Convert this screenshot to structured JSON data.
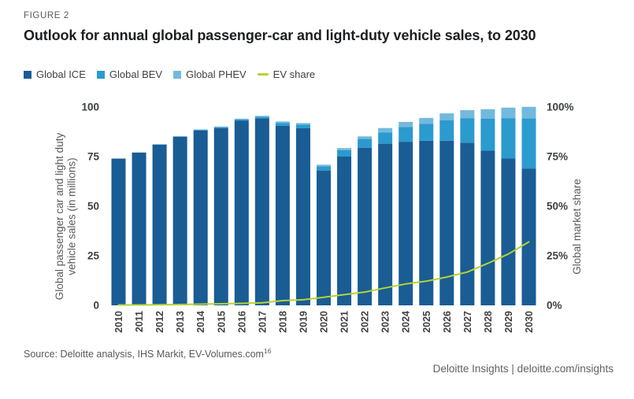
{
  "figure_label": "FIGURE 2",
  "title": "Outlook for annual global passenger-car and light-duty vehicle sales, to 2030",
  "legend": [
    "Global ICE",
    "Global BEV",
    "Global PHEV",
    "EV share"
  ],
  "chart_data": {
    "type": "bar",
    "subtype": "stacked-bars-with-line-overlay",
    "categories": [
      "2010",
      "2011",
      "2012",
      "2013",
      "2014",
      "2015",
      "2016",
      "2017",
      "2018",
      "2019",
      "2020",
      "2021",
      "2022",
      "2023",
      "2024",
      "2025",
      "2026",
      "2027",
      "2028",
      "2029",
      "2030"
    ],
    "series": [
      {
        "name": "Global ICE",
        "key": "ice",
        "color": "#1a5c94",
        "values": [
          74,
          77,
          81,
          85,
          88.2,
          89.4,
          93.2,
          94.3,
          90.5,
          89.3,
          68,
          75,
          79.5,
          81.5,
          82.5,
          83,
          83,
          82,
          78,
          74,
          69
        ]
      },
      {
        "name": "Global BEV",
        "key": "bev",
        "color": "#2b9ace",
        "values": [
          0.05,
          0.1,
          0.15,
          0.2,
          0.3,
          0.45,
          0.55,
          0.8,
          1.5,
          1.8,
          2.1,
          3.3,
          4.4,
          5.6,
          7.4,
          8.6,
          10.4,
          12.4,
          16.2,
          20.4,
          25.3
        ]
      },
      {
        "name": "Global PHEV",
        "key": "phev",
        "color": "#72b9de",
        "values": [
          0,
          0.05,
          0.1,
          0.15,
          0.2,
          0.3,
          0.4,
          0.45,
          0.7,
          0.8,
          0.8,
          1.0,
          1.3,
          2.3,
          2.6,
          2.9,
          3.4,
          4.0,
          4.7,
          5.3,
          5.8
        ]
      }
    ],
    "line_series": {
      "name": "EV share",
      "color": "#b4d335",
      "axis": "right",
      "values": [
        0.2,
        0.2,
        0.3,
        0.4,
        0.6,
        0.8,
        1.0,
        1.3,
        2.4,
        2.8,
        4.1,
        5.4,
        6.7,
        8.8,
        10.8,
        12.2,
        14.3,
        16.8,
        21.2,
        25.9,
        32
      ]
    },
    "left_axis": {
      "label_lines": [
        "Global passenger car and light duty",
        "vehicle sales (in millions)"
      ],
      "ticks": [
        0,
        25,
        50,
        75,
        100
      ],
      "range": [
        0,
        100
      ]
    },
    "right_axis": {
      "label": "Global market share",
      "ticks": [
        "0%",
        "25%",
        "50%",
        "75%",
        "100%"
      ],
      "tick_values": [
        0,
        25,
        50,
        75,
        100
      ],
      "range": [
        0,
        100
      ]
    },
    "grid": false,
    "legend_position": "top-left"
  },
  "footer": {
    "source_text": "Source: Deloitte analysis, IHS Markit, EV-Volumes.com",
    "source_superscript": "16",
    "branding": "Deloitte Insights | deloitte.com/insights"
  }
}
